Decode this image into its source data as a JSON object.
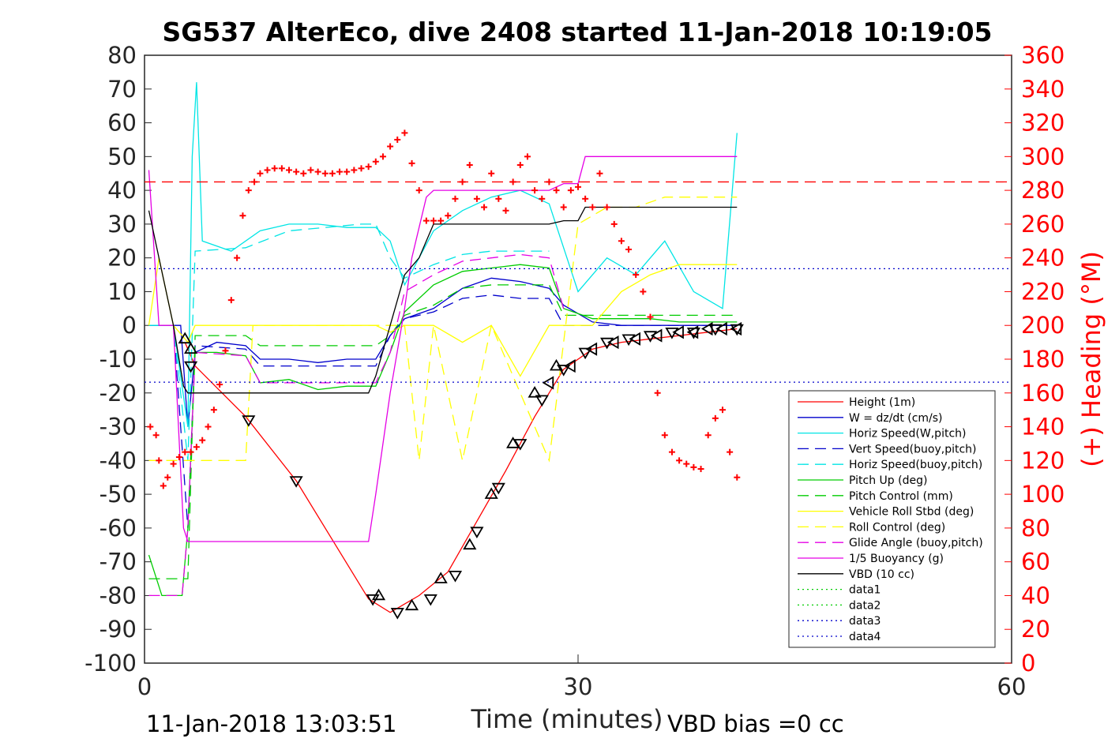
{
  "chart_data": {
    "type": "line",
    "title": "SG537 AlterEco, dive 2408 started 11-Jan-2018 10:19:05",
    "xlabel": "Time (minutes)",
    "ylabel": "",
    "y2label": "(+) Heading (°M)",
    "xlim": [
      0,
      60
    ],
    "ylim": [
      -100,
      80
    ],
    "y2lim": [
      0,
      360
    ],
    "x_ticks": [
      "0",
      "30",
      "60"
    ],
    "y_ticks": [
      "80",
      "70",
      "60",
      "50",
      "40",
      "30",
      "20",
      "10",
      "0",
      "-10",
      "-20",
      "-30",
      "-40",
      "-50",
      "-60",
      "-70",
      "-80",
      "-90",
      "-100"
    ],
    "y2_ticks": [
      "360",
      "340",
      "320",
      "300",
      "280",
      "260",
      "240",
      "220",
      "200",
      "180",
      "160",
      "140",
      "120",
      "100",
      "80",
      "60",
      "40",
      "20",
      "0"
    ],
    "footer_left": "11-Jan-2018 13:03:51",
    "footer_right": "VBD bias =0 cc",
    "legend_position": "lower-right",
    "series": [
      {
        "name": "Height (1m)",
        "color": "#ff0000",
        "style": "solid",
        "x": [
          2.8,
          3.5,
          7,
          10.5,
          15.5,
          17,
          19,
          21,
          23,
          25,
          27,
          29,
          31,
          33,
          35,
          37,
          39,
          41
        ],
        "y": [
          -5,
          -12,
          -27,
          -46,
          -81,
          -85,
          -80,
          -73,
          -58,
          -43,
          -27,
          -13,
          -7,
          -5,
          -4,
          -3,
          -2,
          -1
        ]
      },
      {
        "name": "W = dz/dt (cm/s)",
        "color": "#0000cc",
        "style": "solid",
        "x": [
          0.3,
          1.5,
          2.5,
          3.0,
          3.5,
          5,
          7,
          8,
          10,
          12,
          14,
          16,
          17,
          18,
          20,
          22,
          24,
          26,
          28,
          29,
          31,
          33,
          35,
          37,
          41
        ],
        "y": [
          0,
          0,
          0,
          -30,
          -8,
          -5,
          -6,
          -10,
          -10,
          -11,
          -10,
          -10,
          -3,
          2,
          5,
          11,
          14,
          13,
          11,
          6,
          1,
          0,
          0,
          0,
          0
        ]
      },
      {
        "name": "Horiz Speed(W,pitch)",
        "color": "#00e5e5",
        "style": "solid",
        "x": [
          0.3,
          2,
          3,
          3.3,
          3.6,
          4,
          6,
          8,
          10,
          12,
          14,
          16,
          17,
          18,
          19,
          20,
          22,
          24,
          26,
          28,
          30,
          32,
          34,
          36,
          38,
          40,
          41
        ],
        "y": [
          0,
          0,
          -30,
          50,
          72,
          25,
          22,
          28,
          30,
          30,
          29,
          29,
          25,
          12,
          20,
          28,
          34,
          38,
          40,
          36,
          10,
          20,
          15,
          25,
          10,
          5,
          57
        ]
      },
      {
        "name": "Vert Speed(buoy,pitch)",
        "color": "#0000cc",
        "style": "dashed",
        "x": [
          0.3,
          2,
          3,
          3.5,
          7,
          8,
          16,
          17,
          18,
          20,
          22,
          24,
          26,
          28,
          29,
          33,
          41
        ],
        "y": [
          0,
          0,
          -60,
          -6,
          -7,
          -12,
          -12,
          -3,
          2,
          4,
          8,
          9,
          8,
          8,
          0,
          0,
          0
        ]
      },
      {
        "name": "Horiz Speed(buoy,pitch)",
        "color": "#00e5e5",
        "style": "dashed",
        "x": [
          0.3,
          2,
          3,
          3.5,
          7,
          10,
          15,
          16,
          17,
          18,
          20,
          22,
          24,
          26,
          28
        ],
        "y": [
          0,
          0,
          -40,
          22,
          23,
          28,
          30,
          30,
          20,
          14,
          18,
          21,
          22,
          22,
          22
        ]
      },
      {
        "name": "Pitch Up (deg)",
        "color": "#00cc00",
        "style": "solid",
        "x": [
          0.3,
          1.2,
          2.6,
          3,
          3.5,
          5,
          7,
          8,
          10,
          12,
          14,
          16,
          17,
          18,
          20,
          22,
          24,
          26,
          28,
          29,
          31,
          33,
          35,
          37,
          41
        ],
        "y": [
          -68,
          -80,
          -80,
          -60,
          -8,
          -8,
          -9,
          -17,
          -16,
          -19,
          -18,
          -18,
          -8,
          4,
          12,
          16,
          17,
          18,
          17,
          5,
          2,
          2,
          2,
          1,
          1
        ]
      },
      {
        "name": "Pitch Control (mm)",
        "color": "#00cc00",
        "style": "dashed",
        "x": [
          0.3,
          2.5,
          3,
          3.5,
          7,
          8,
          16,
          17,
          18,
          20,
          22,
          24,
          26,
          28,
          29,
          33,
          41
        ],
        "y": [
          -75,
          -75,
          -75,
          -3,
          -3,
          -6,
          -6,
          -3,
          3,
          6,
          11,
          12,
          12,
          12,
          3,
          3,
          3
        ]
      },
      {
        "name": "Vehicle Roll Stbd (deg)",
        "color": "#ffff00",
        "style": "solid",
        "x": [
          0.3,
          1,
          2,
          3,
          3.5,
          7,
          8,
          10,
          14,
          16,
          17,
          18,
          20,
          22,
          24,
          26,
          28,
          29,
          31,
          33,
          35,
          37,
          41
        ],
        "y": [
          0,
          20,
          0,
          -5,
          0,
          0,
          0,
          0,
          0,
          0,
          -2,
          0,
          0,
          -5,
          0,
          -15,
          0,
          0,
          0,
          10,
          15,
          18,
          18
        ]
      },
      {
        "name": "Roll Control (deg)",
        "color": "#ffff00",
        "style": "dashed",
        "x": [
          0.3,
          2,
          3,
          3.5,
          7,
          7.5,
          16,
          17,
          18,
          19,
          20,
          22,
          24,
          26,
          28,
          30,
          32,
          34,
          36,
          38,
          41
        ],
        "y": [
          -40,
          -40,
          -40,
          -40,
          -40,
          0,
          0,
          0,
          0,
          -40,
          0,
          -40,
          0,
          -20,
          -40,
          30,
          35,
          35,
          38,
          38,
          38
        ]
      },
      {
        "name": "Glide Angle (buoy,pitch)",
        "color": "#e500e5",
        "style": "dashed",
        "x": [
          0.3,
          1.5,
          2.6,
          3,
          3.5,
          7,
          8,
          10,
          16,
          17,
          18,
          20,
          22,
          24,
          26,
          28,
          29
        ],
        "y": [
          -80,
          -80,
          -80,
          -60,
          -8,
          -9,
          -17,
          -17,
          -17,
          -8,
          10,
          15,
          19,
          20,
          21,
          20,
          5
        ]
      },
      {
        "name": "1/5 Buoyancy (g)",
        "color": "#e500e5",
        "style": "solid",
        "x": [
          0.3,
          1,
          2,
          2.7,
          3.0,
          4,
          8,
          12,
          15.5,
          16,
          17,
          18,
          18.5,
          19,
          19.5,
          20,
          28,
          29,
          30,
          30.5,
          41
        ],
        "y": [
          46,
          0,
          0,
          -60,
          -64,
          -64,
          -64,
          -64,
          -64,
          -50,
          -20,
          5,
          20,
          29,
          38,
          40,
          40,
          42,
          42,
          50,
          50
        ]
      },
      {
        "name": "VBD (10 cc)",
        "color": "#000000",
        "style": "solid",
        "x": [
          0.3,
          1,
          2,
          2.7,
          3.0,
          4,
          8,
          12,
          15.5,
          16,
          17,
          18,
          19,
          20,
          28,
          29,
          30,
          30.5,
          41
        ],
        "y": [
          34,
          20,
          0,
          -18,
          -20,
          -20,
          -20,
          -20,
          -20,
          -15,
          0,
          15,
          20,
          30,
          30,
          31,
          31,
          35,
          35
        ]
      },
      {
        "name": "data1",
        "color": "#00cc00",
        "style": "dotted",
        "x": [
          0,
          60
        ],
        "y": [
          null,
          null
        ]
      },
      {
        "name": "data2",
        "color": "#00cc00",
        "style": "dotted",
        "x": [
          0,
          60
        ],
        "y": [
          null,
          null
        ]
      },
      {
        "name": "data3",
        "color": "#0000cc",
        "style": "dotted",
        "x": [
          0,
          60
        ],
        "y": [
          16.8,
          16.8
        ]
      },
      {
        "name": "data4",
        "color": "#0000cc",
        "style": "dotted",
        "x": [
          0,
          60
        ],
        "y": [
          -16.8,
          -16.8
        ]
      }
    ],
    "heading_target": {
      "color": "#ff0000",
      "style": "dashed",
      "value": 285
    },
    "heading_points": {
      "color": "#ff0000",
      "x": [
        0.4,
        0.8,
        1.0,
        1.3,
        1.6,
        2.0,
        2.4,
        2.8,
        3.2,
        3.6,
        4.0,
        4.4,
        4.8,
        5.2,
        5.6,
        6.0,
        6.4,
        6.8,
        7.2,
        7.6,
        8.0,
        8.5,
        9,
        9.5,
        10,
        10.5,
        11,
        11.5,
        12,
        12.5,
        13,
        13.5,
        14,
        14.5,
        15,
        15.5,
        16,
        16.5,
        17,
        17.5,
        18,
        18.5,
        19,
        19.5,
        20,
        20.5,
        21,
        21.5,
        22,
        22.5,
        23,
        23.5,
        24,
        24.5,
        25,
        25.5,
        26,
        26.5,
        27,
        27.5,
        28,
        28.5,
        29,
        29.5,
        30,
        30.5,
        31,
        31.5,
        32,
        32.5,
        33,
        33.5,
        34,
        34.5,
        35,
        35.5,
        36,
        36.5,
        37,
        37.5,
        38,
        38.5,
        39,
        39.5,
        40,
        40.5,
        41
      ],
      "y": [
        140,
        135,
        120,
        105,
        110,
        118,
        122,
        125,
        125,
        128,
        132,
        140,
        150,
        165,
        185,
        215,
        240,
        265,
        280,
        285,
        290,
        292,
        293,
        293,
        292,
        291,
        290,
        292,
        291,
        290,
        290,
        291,
        291,
        292,
        293,
        294,
        297,
        300,
        306,
        310,
        314,
        296,
        280,
        262,
        262,
        262,
        265,
        275,
        285,
        295,
        275,
        270,
        290,
        275,
        268,
        285,
        295,
        300,
        280,
        275,
        285,
        280,
        270,
        280,
        282,
        275,
        270,
        290,
        270,
        260,
        250,
        245,
        230,
        220,
        205,
        160,
        135,
        125,
        120,
        118,
        116,
        115,
        135,
        145,
        150,
        125,
        110
      ]
    },
    "markers_down": {
      "x": [
        3.2,
        7.2,
        10.5,
        15.8,
        17.5,
        19.8,
        21.5,
        23.0,
        24.5,
        26.0,
        27.5,
        29.0,
        30.5,
        32.0,
        33.5,
        35.0,
        36.5,
        38.0,
        39.5,
        41.0
      ],
      "y": [
        -12,
        -28,
        -46,
        -81,
        -85,
        -81,
        -74,
        -61,
        -48,
        -35,
        -22,
        -13,
        -8,
        -5,
        -4,
        -3,
        -2,
        -2,
        -1,
        -1
      ]
    },
    "markers_up": {
      "x": [
        2.8,
        3.2,
        16.2,
        18.5,
        20.5,
        22.5,
        24.0,
        25.5,
        27.0,
        28.5
      ],
      "y": [
        -4,
        -7,
        -80,
        -83,
        -75,
        -65,
        -50,
        -35,
        -20,
        -12
      ]
    },
    "markers_left": {
      "x": [
        28.0,
        29.5,
        31.0,
        32.5,
        34.0,
        35.5,
        37.0,
        38.0,
        39.0,
        40.0,
        41.0
      ],
      "y": [
        -17,
        -12,
        -7,
        -5,
        -4,
        -3,
        -2,
        -2,
        -1,
        -1,
        -1
      ]
    }
  }
}
